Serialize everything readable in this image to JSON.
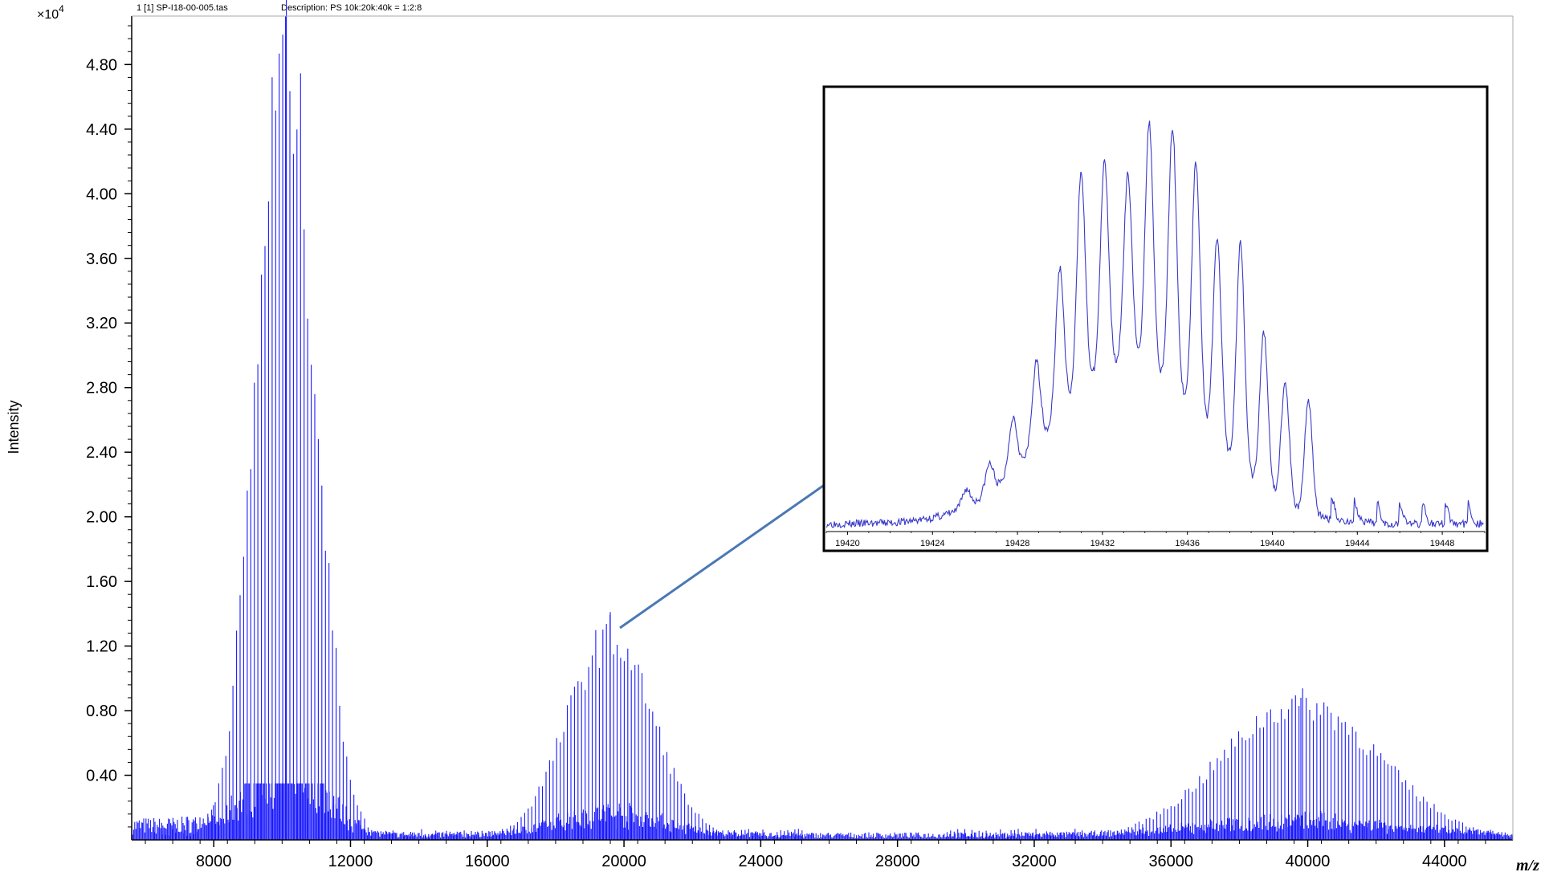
{
  "header": {
    "run_label": "1 [1] SP-I18-00-005.tas",
    "description": "Description: PS 10k:20k:40k = 1:2:8"
  },
  "colors": {
    "trace": "#1a1aff",
    "inset_trace": "#3a3ac8",
    "arrow": "#4a78b5",
    "frame": "#000000"
  },
  "chart_data": [
    {
      "type": "line",
      "title": "",
      "xlabel": "m/z",
      "ylabel": "Intensity",
      "y_multiplier": "×10",
      "y_multiplier_exp": "4",
      "xlim": [
        5600,
        46000
      ],
      "ylim": [
        0,
        5.1
      ],
      "x_ticks": [
        8000,
        12000,
        16000,
        20000,
        24000,
        28000,
        32000,
        36000,
        40000,
        44000
      ],
      "x_tick_labels": [
        "8000",
        "12000",
        "16000",
        "20000",
        "24000",
        "28000",
        "32000",
        "36000",
        "40000",
        "44000"
      ],
      "y_ticks": [
        0.4,
        0.8,
        1.2,
        1.6,
        2.0,
        2.4,
        2.8,
        3.2,
        3.6,
        4.0,
        4.4,
        4.8
      ],
      "y_tick_labels": [
        "0.40",
        "0.80",
        "1.20",
        "1.60",
        "2.00",
        "2.40",
        "2.80",
        "3.20",
        "3.60",
        "4.00",
        "4.40",
        "4.80"
      ],
      "grid": false,
      "series": [
        {
          "distributions": [
            {
              "center_mz": 10100,
              "peak_intensity": 4.85,
              "sigma_mz": 850,
              "max_intensity": 5.1
            },
            {
              "center_mz": 19600,
              "peak_intensity": 1.25,
              "sigma_mz": 1250,
              "max_intensity": 1.41
            },
            {
              "center_mz": 39800,
              "peak_intensity": 0.84,
              "sigma_mz": 2300,
              "max_intensity": 0.88
            }
          ],
          "peak_spacing_mz": 104,
          "baseline_noise": 0.12
        }
      ]
    },
    {
      "type": "line",
      "title": "",
      "xlim": [
        19419,
        19450
      ],
      "x_ticks": [
        19420,
        19424,
        19428,
        19432,
        19436,
        19440,
        19444,
        19448
      ],
      "x_tick_labels": [
        "19420",
        "19424",
        "19428",
        "19432",
        "19436",
        "19440",
        "19444",
        "19448"
      ],
      "series": [
        {
          "peaks_mz": [
            19425.6,
            19426.7,
            19427.8,
            19428.9,
            19430.0,
            19431.0,
            19432.1,
            19433.2,
            19434.2,
            19435.3,
            19436.4,
            19437.4,
            19438.5,
            19439.6,
            19440.6,
            19441.7
          ],
          "peaks_rel": [
            0.1,
            0.16,
            0.27,
            0.4,
            0.62,
            0.85,
            0.87,
            0.84,
            0.96,
            0.95,
            0.87,
            0.69,
            0.68,
            0.47,
            0.35,
            0.26
          ],
          "baseline_rel": 0.02
        }
      ]
    }
  ]
}
